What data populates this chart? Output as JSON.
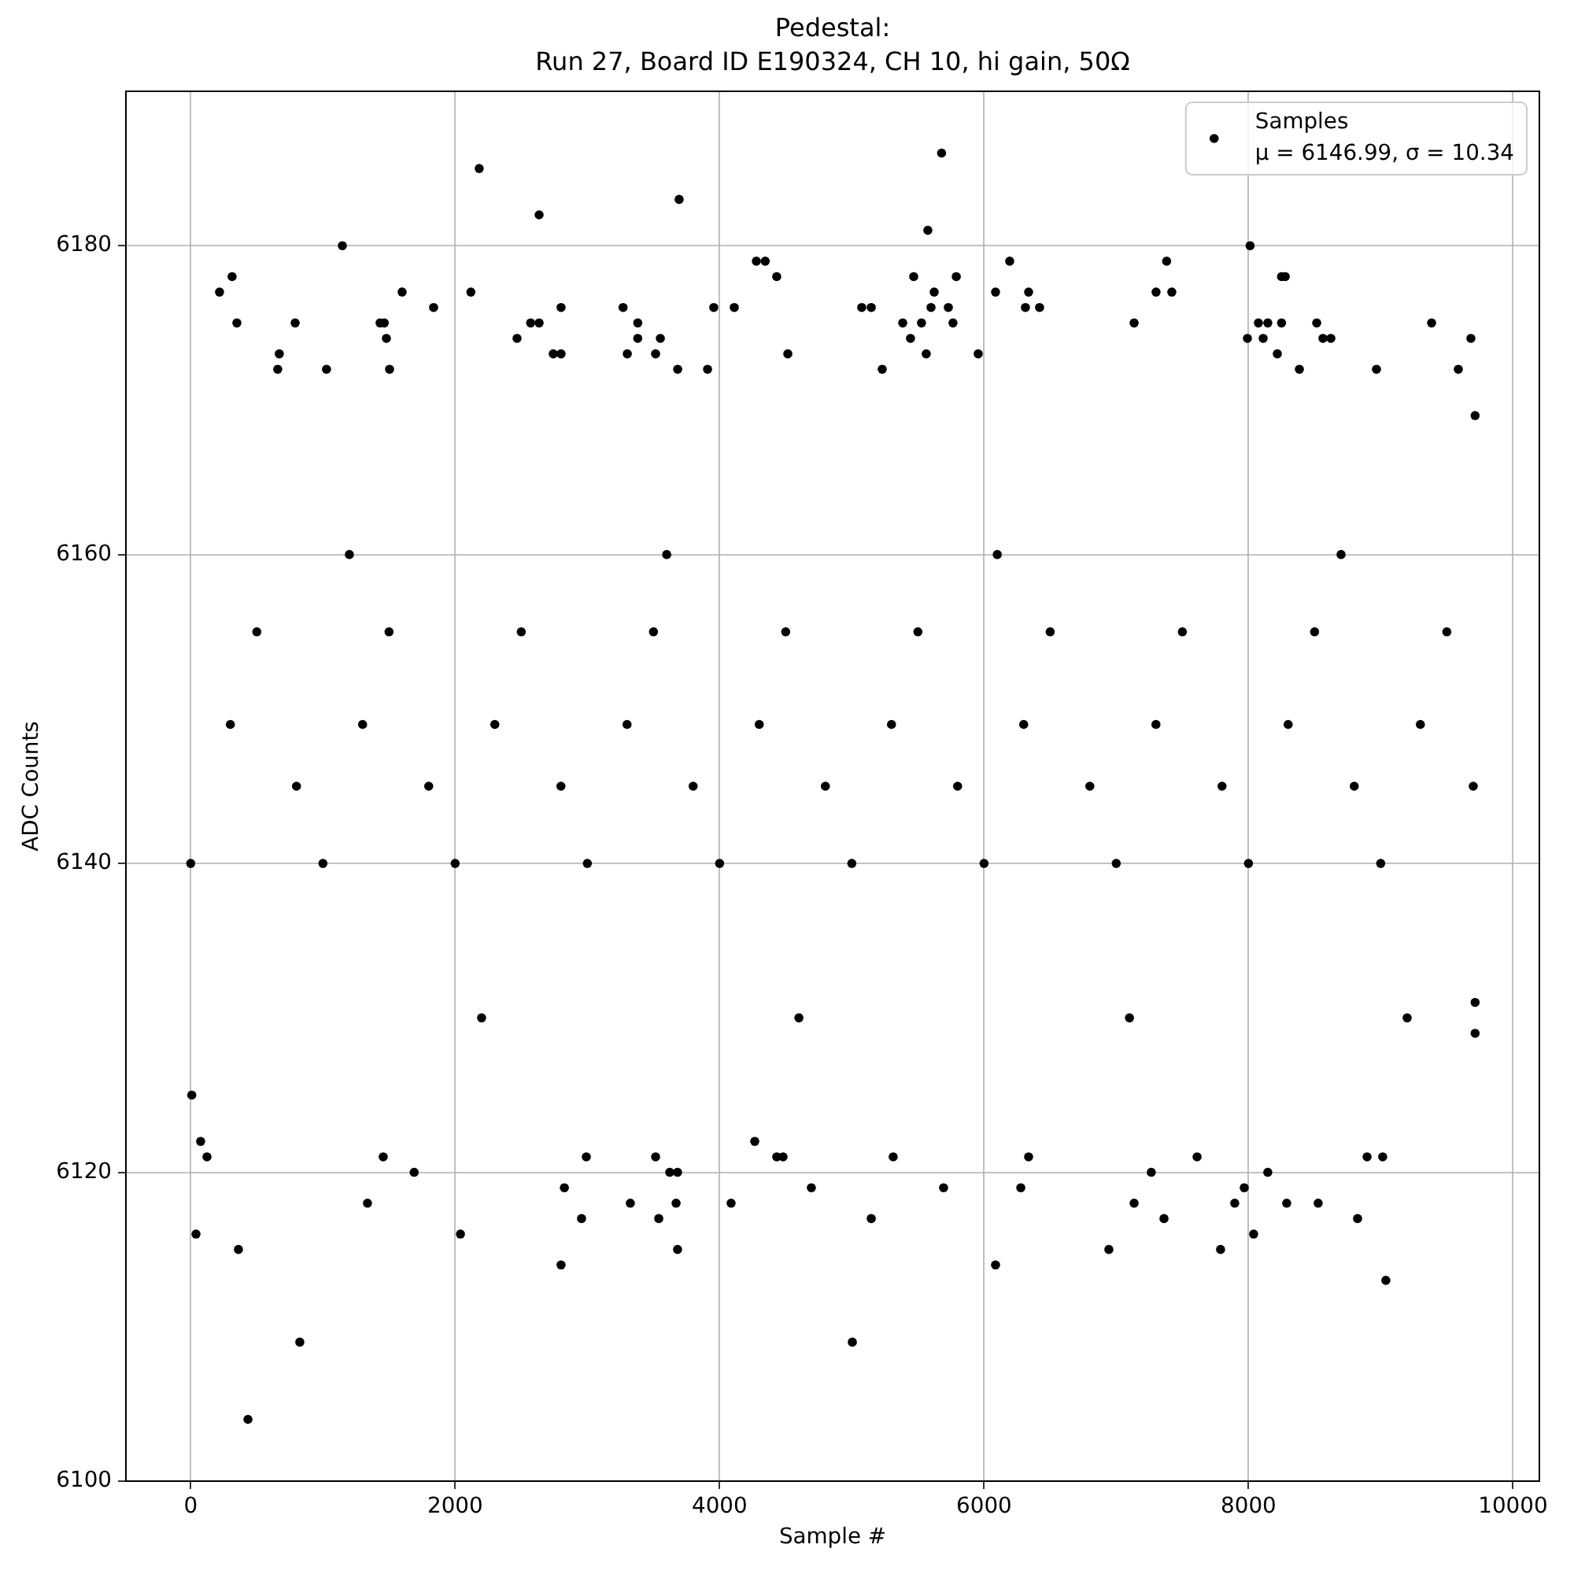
{
  "chart_data": {
    "type": "scatter",
    "title": "Pedestal:\nRun 27, Board ID E190324, CH 10, hi gain, 50Ω",
    "xlabel": "Sample #",
    "ylabel": "ADC Counts",
    "xlim": [
      -490,
      10200
    ],
    "ylim": [
      6100,
      6190
    ],
    "xticks": [
      0,
      2000,
      4000,
      6000,
      8000,
      10000
    ],
    "yticks": [
      6100,
      6120,
      6140,
      6160,
      6180
    ],
    "grid": true,
    "legend": "top right",
    "marker": "circle",
    "series": [
      {
        "name": "Samples\nμ = 6146.99, σ = 10.34",
        "color": "#000000",
        "x": [
          2182,
          2635,
          3694,
          1147,
          313,
          218,
          4278,
          4345,
          4432,
          1599,
          2119,
          1837,
          2801,
          3270,
          3956,
          4111,
          349,
          790,
          1432,
          1464,
          2571,
          2635,
          3381,
          1480,
          2468,
          3381,
          3552,
          670,
          2742,
          2801,
          3302,
          3516,
          4516,
          658,
          1027,
          1504,
          3683,
          3909,
          5679,
          5575,
          8012,
          6194,
          7381,
          5468,
          5790,
          8250,
          8278,
          6087,
          6337,
          7301,
          7420,
          5623,
          5075,
          5147,
          5599,
          5730,
          6313,
          6420,
          5385,
          5527,
          5765,
          7135,
          8075,
          8146,
          8250,
          8516,
          9385,
          5444,
          7992,
          8111,
          8563,
          8623,
          9682,
          5563,
          5956,
          8218,
          5230,
          8385,
          8968,
          9587,
          40,
          361,
          825,
          433,
          1337,
          1690,
          2040,
          2826,
          2801,
          2956,
          3325,
          3540,
          3623,
          3682,
          3671,
          3682,
          4087,
          4694,
          123,
          8,
          75,
          1456,
          2992,
          3516,
          4432,
          4480,
          4266,
          5004,
          5147,
          5694,
          6087,
          6278,
          6944,
          7135,
          7361,
          7265,
          7789,
          7896,
          7968,
          8039,
          8146,
          8289,
          8527,
          8825,
          9039,
          5313,
          6337,
          7611,
          8897,
          9015,
          300,
          1300,
          2300,
          3300,
          4300,
          5300,
          6300,
          7300,
          8300,
          9300,
          800,
          1800,
          2800,
          3800,
          4800,
          5800,
          6800,
          7800,
          8800,
          9700,
          0,
          1000,
          2000,
          3000,
          4000,
          5000,
          6000,
          7000,
          8000,
          9000,
          500,
          1500,
          2500,
          3500,
          4500,
          5500,
          6500,
          7500,
          8500,
          9500,
          1200,
          3600,
          6100,
          8700,
          2200,
          4600,
          7100,
          9200,
          9714,
          9714,
          9714
        ],
        "values": [
          6185,
          6182,
          6183,
          6180,
          6178,
          6177,
          6179,
          6179,
          6178,
          6177,
          6177,
          6176,
          6176,
          6176,
          6176,
          6176,
          6175,
          6175,
          6175,
          6175,
          6175,
          6175,
          6175,
          6174,
          6174,
          6174,
          6174,
          6173,
          6173,
          6173,
          6173,
          6173,
          6173,
          6172,
          6172,
          6172,
          6172,
          6172,
          6186,
          6181,
          6180,
          6179,
          6179,
          6178,
          6178,
          6178,
          6178,
          6177,
          6177,
          6177,
          6177,
          6177,
          6176,
          6176,
          6176,
          6176,
          6176,
          6176,
          6175,
          6175,
          6175,
          6175,
          6175,
          6175,
          6175,
          6175,
          6175,
          6174,
          6174,
          6174,
          6174,
          6174,
          6174,
          6173,
          6173,
          6173,
          6172,
          6172,
          6172,
          6172,
          6116,
          6115,
          6109,
          6104,
          6118,
          6120,
          6116,
          6119,
          6114,
          6117,
          6118,
          6117,
          6120,
          6120,
          6118,
          6115,
          6118,
          6119,
          6121,
          6125,
          6122,
          6121,
          6121,
          6121,
          6121,
          6121,
          6122,
          6109,
          6117,
          6119,
          6114,
          6119,
          6115,
          6118,
          6117,
          6120,
          6115,
          6118,
          6119,
          6116,
          6120,
          6118,
          6118,
          6117,
          6113,
          6121,
          6121,
          6121,
          6121,
          6121,
          6149,
          6149,
          6149,
          6149,
          6149,
          6149,
          6149,
          6149,
          6149,
          6149,
          6145,
          6145,
          6145,
          6145,
          6145,
          6145,
          6145,
          6145,
          6145,
          6145,
          6140,
          6140,
          6140,
          6140,
          6140,
          6140,
          6140,
          6140,
          6140,
          6140,
          6155,
          6155,
          6155,
          6155,
          6155,
          6155,
          6155,
          6155,
          6155,
          6155,
          6160,
          6160,
          6160,
          6160,
          6130,
          6130,
          6130,
          6130,
          6169,
          6131,
          6129
        ]
      }
    ]
  }
}
